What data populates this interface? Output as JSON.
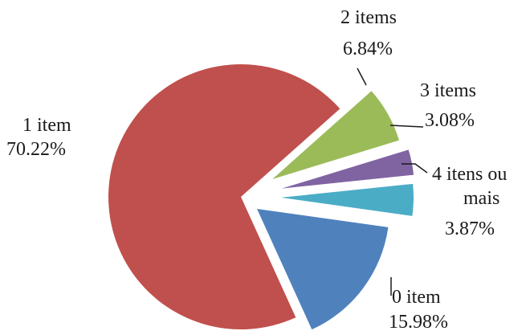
{
  "chart_data": {
    "type": "pie",
    "slices": [
      {
        "label": "0 item",
        "value_label": "15.98%",
        "value": 15.98,
        "color": "#4f81bd"
      },
      {
        "label": "1 item",
        "value_label": "70.22%",
        "value": 70.22,
        "color": "#c0504d"
      },
      {
        "label": "2 items",
        "value_label": "6.84%",
        "value": 6.84,
        "color": "#9bbb59"
      },
      {
        "label": "3 items",
        "value_label": "3.08%",
        "value": 3.08,
        "color": "#8064a2"
      },
      {
        "label": "4 itens ou mais",
        "label_lines": [
          "4 itens ou",
          "mais"
        ],
        "value_label": "3.87%",
        "value": 3.87,
        "color": "#4bacc6"
      }
    ]
  }
}
